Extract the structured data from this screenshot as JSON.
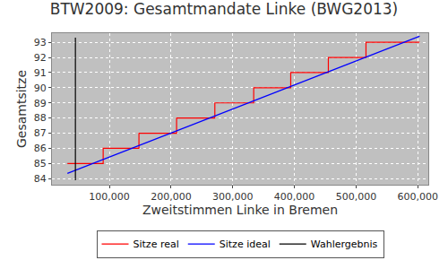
{
  "chart_data": {
    "type": "line",
    "title": "BTW2009: Gesamtmandate Linke (BWG2013)",
    "x_label": "Zweitstimmen Linke in Bremen",
    "y_label": "Gesamtsitze",
    "series": [
      {
        "name": "Sitze real",
        "color": "#ff0000",
        "line_style": "step",
        "x": [
          32000,
          90000,
          148000,
          209000,
          271000,
          334000,
          394000,
          455000,
          516000,
          603000
        ],
        "values": [
          85,
          86,
          87,
          88,
          89,
          90,
          91,
          92,
          93,
          93
        ]
      },
      {
        "name": "Sitze ideal",
        "color": "#0000ff",
        "line_style": "solid",
        "x": [
          32000,
          603000
        ],
        "values": [
          84.35,
          93.4
        ]
      },
      {
        "name": "Wahlergebnis",
        "color": "#000000",
        "line_style": "solid",
        "x": [
          45000,
          45000
        ],
        "values": [
          83.9,
          93.3
        ]
      }
    ],
    "xlim": [
      7000,
      617000
    ],
    "xticks": [
      {
        "value": 100000,
        "label": "100,000"
      },
      {
        "value": 200000,
        "label": "200,000"
      },
      {
        "value": 300000,
        "label": "300,000"
      },
      {
        "value": 400000,
        "label": "400,000"
      },
      {
        "value": 500000,
        "label": "500,000"
      },
      {
        "value": 600000,
        "label": "600,000"
      }
    ],
    "ylim": [
      83.6,
      93.6
    ],
    "yticks": [
      84,
      85,
      86,
      87,
      88,
      89,
      90,
      91,
      92,
      93
    ],
    "grid": true,
    "legend": "bottom"
  }
}
